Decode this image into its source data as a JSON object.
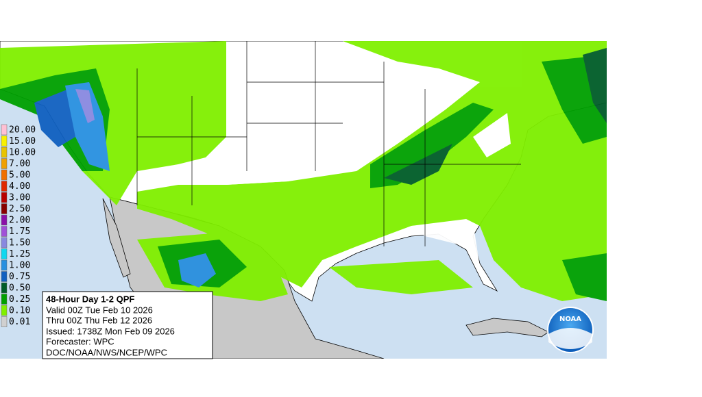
{
  "legend": {
    "entries": [
      {
        "label": "20.00",
        "color": "#ffc0d4"
      },
      {
        "label": "15.00",
        "color": "#f8f000"
      },
      {
        "label": "10.00",
        "color": "#e8c400"
      },
      {
        "label": "7.00",
        "color": "#f0a000"
      },
      {
        "label": "5.00",
        "color": "#f07000"
      },
      {
        "label": "4.00",
        "color": "#e02800"
      },
      {
        "label": "3.00",
        "color": "#b80000"
      },
      {
        "label": "2.50",
        "color": "#880000"
      },
      {
        "label": "2.00",
        "color": "#8a10a8"
      },
      {
        "label": "1.75",
        "color": "#a050d8"
      },
      {
        "label": "1.50",
        "color": "#8888e0"
      },
      {
        "label": "1.25",
        "color": "#10d8f0"
      },
      {
        "label": "1.00",
        "color": "#2890e0"
      },
      {
        "label": "0.75",
        "color": "#1060c0"
      },
      {
        "label": "0.50",
        "color": "#005c28"
      },
      {
        "label": "0.25",
        "color": "#00a000"
      },
      {
        "label": "0.10",
        "color": "#80f000"
      },
      {
        "label": "0.01",
        "color": "#d0d0d0"
      }
    ]
  },
  "info": {
    "title": "48-Hour Day 1-2 QPF",
    "lines": [
      "Valid 00Z Tue Feb 10 2026",
      "Thru 00Z Thu Feb 12 2026",
      "Issued: 1738Z Mon Feb 09 2026",
      "Forecaster: WPC",
      "DOC/NOAA/NWS/NCEP/WPC"
    ]
  },
  "logo": {
    "text": "NOAA"
  }
}
